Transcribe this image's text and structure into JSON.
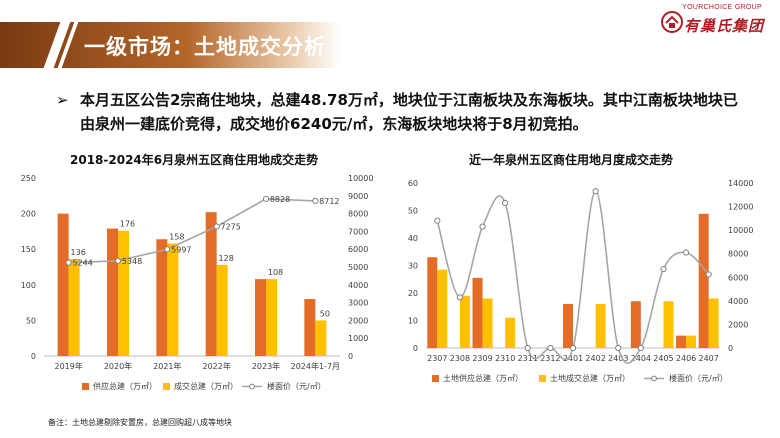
{
  "header": {
    "title": "一级市场：土地成交分析",
    "logo_english": "YOURCHOICE GROUP",
    "logo_chinese": "有巢氏集团"
  },
  "bullet": {
    "marker": "➢",
    "text": "本月五区公告2宗商住地块，总建48.78万㎡，地块位于江南板块及东海板块。其中江南板块地块已由泉州一建底价竞得，成交地价6240元/㎡，东海板块地块将于8月初竞拍。"
  },
  "footnote": "备注：土地总建剔除安置房，总建回购超八成等地块",
  "colors": {
    "supply": "#e46c26",
    "deal": "#ffc000",
    "price": "#a6a6a6"
  },
  "chart_data": [
    {
      "type": "bar",
      "title": "2018-2024年6月泉州五区商住用地成交走势",
      "categories": [
        "2019年",
        "2020年",
        "2021年",
        "2022年",
        "2023年",
        "2024年1-7月"
      ],
      "series": [
        {
          "name": "供应总建（万㎡）",
          "kind": "bar",
          "axis": "left",
          "values": [
            200,
            179,
            164,
            202,
            108,
            80
          ]
        },
        {
          "name": "成交总建（万㎡）",
          "kind": "bar",
          "axis": "left",
          "values": [
            136,
            176,
            158,
            128,
            108,
            50
          ],
          "labels": [
            "136",
            "176",
            "158",
            "128",
            "108",
            "50"
          ]
        },
        {
          "name": "楼面价（元/㎡）",
          "kind": "line",
          "axis": "right",
          "values": [
            5244,
            5348,
            5997,
            7275,
            8828,
            8712
          ],
          "labels": [
            "5244",
            "5348",
            "5997",
            "7275",
            "8828",
            "8712"
          ]
        }
      ],
      "left_axis": {
        "min": 0,
        "max": 250,
        "ticks": [
          "0",
          "50",
          "100",
          "150",
          "200",
          "250"
        ]
      },
      "right_axis": {
        "min": 0,
        "max": 10000,
        "ticks": [
          "0",
          "1000",
          "2000",
          "3000",
          "4000",
          "5000",
          "6000",
          "7000",
          "8000",
          "9000",
          "10000"
        ]
      },
      "legend": "bottom"
    },
    {
      "type": "bar",
      "title": "近一年泉州五区商住用地月度成交走势",
      "categories": [
        "2307",
        "2308",
        "2309",
        "2310",
        "2311",
        "2312",
        "2401",
        "2402",
        "2403",
        "2404",
        "2405",
        "2406",
        "2407"
      ],
      "series": [
        {
          "name": "土地供应总建（万㎡）",
          "kind": "bar",
          "axis": "left",
          "values": [
            33,
            0,
            25.5,
            0,
            0,
            0,
            16,
            0,
            0,
            17,
            0,
            4.5,
            48.8
          ]
        },
        {
          "name": "土地成交总建（万㎡）",
          "kind": "bar",
          "axis": "left",
          "values": [
            28.5,
            19,
            18,
            11,
            0,
            0,
            0,
            16,
            0,
            0,
            17,
            4.5,
            18
          ]
        },
        {
          "name": "楼面价（元/㎡）",
          "kind": "line",
          "axis": "right",
          "values": [
            10800,
            4300,
            10300,
            12300,
            0,
            0,
            0,
            13300,
            0,
            0,
            6700,
            8100,
            6240
          ]
        }
      ],
      "left_axis": {
        "min": 0,
        "max": 60,
        "ticks": [
          "0",
          "10",
          "20",
          "30",
          "40",
          "50",
          "60"
        ]
      },
      "right_axis": {
        "min": 0,
        "max": 14000,
        "ticks": [
          "0",
          "2000",
          "4000",
          "6000",
          "8000",
          "10000",
          "12000",
          "14000"
        ]
      },
      "legend": "bottom"
    }
  ]
}
